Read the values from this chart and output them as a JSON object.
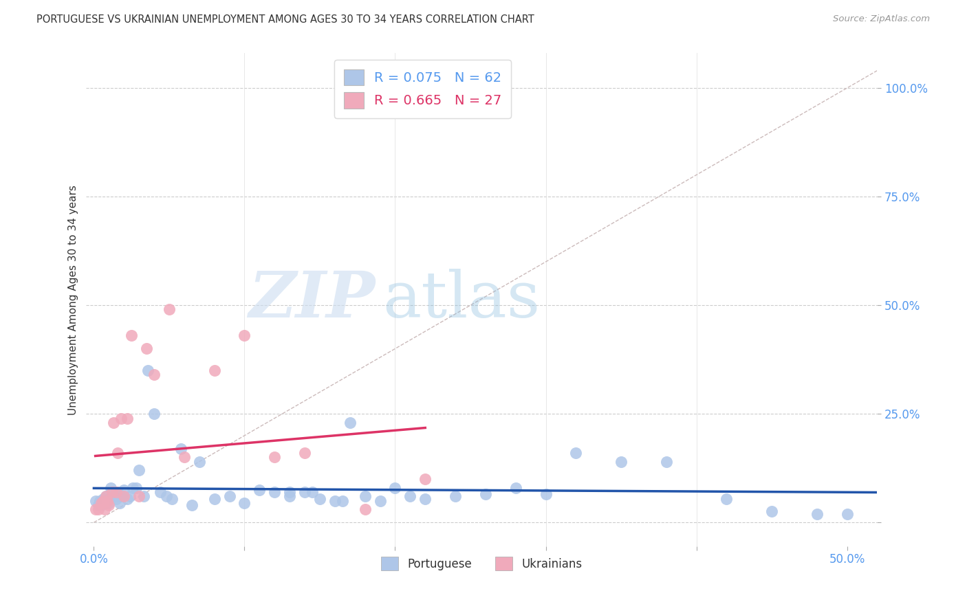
{
  "title": "PORTUGUESE VS UKRAINIAN UNEMPLOYMENT AMONG AGES 30 TO 34 YEARS CORRELATION CHART",
  "source": "Source: ZipAtlas.com",
  "ylabel": "Unemployment Among Ages 30 to 34 years",
  "xlim": [
    -0.005,
    0.52
  ],
  "ylim": [
    -0.055,
    1.08
  ],
  "xticks": [
    0.0,
    0.1,
    0.2,
    0.3,
    0.4,
    0.5
  ],
  "xtick_labels": [
    "0.0%",
    "",
    "",
    "",
    "",
    "50.0%"
  ],
  "yticks": [
    0.0,
    0.25,
    0.5,
    0.75,
    1.0
  ],
  "ytick_labels": [
    "",
    "25.0%",
    "50.0%",
    "75.0%",
    "100.0%"
  ],
  "legend_r1": "R = 0.075",
  "legend_n1": "N = 62",
  "legend_r2": "R = 0.665",
  "legend_n2": "N = 27",
  "portuguese_face_color": "#aec6e8",
  "ukrainian_face_color": "#f0aabb",
  "trend_portuguese_color": "#2255aa",
  "trend_ukrainian_color": "#dd3366",
  "diagonal_color": "#ccbbbb",
  "grid_color": "#cccccc",
  "title_color": "#333333",
  "axis_tick_color": "#5599ee",
  "source_color": "#999999",
  "legend_text_color_1": "#5599ee",
  "legend_text_color_2": "#dd3366",
  "watermark_zip_color": "#ccddf0",
  "watermark_atlas_color": "#88bbdd",
  "portuguese_x": [
    0.001,
    0.003,
    0.004,
    0.005,
    0.006,
    0.007,
    0.008,
    0.009,
    0.01,
    0.011,
    0.012,
    0.013,
    0.014,
    0.015,
    0.016,
    0.017,
    0.018,
    0.019,
    0.02,
    0.022,
    0.024,
    0.026,
    0.028,
    0.03,
    0.033,
    0.036,
    0.04,
    0.044,
    0.048,
    0.052,
    0.058,
    0.065,
    0.07,
    0.08,
    0.09,
    0.1,
    0.11,
    0.12,
    0.13,
    0.14,
    0.15,
    0.16,
    0.17,
    0.18,
    0.19,
    0.2,
    0.22,
    0.24,
    0.26,
    0.28,
    0.3,
    0.32,
    0.35,
    0.38,
    0.42,
    0.45,
    0.48,
    0.5,
    0.13,
    0.145,
    0.165,
    0.21
  ],
  "portuguese_y": [
    0.05,
    0.04,
    0.05,
    0.04,
    0.055,
    0.045,
    0.06,
    0.05,
    0.045,
    0.08,
    0.07,
    0.06,
    0.06,
    0.055,
    0.07,
    0.045,
    0.06,
    0.06,
    0.075,
    0.055,
    0.06,
    0.08,
    0.08,
    0.12,
    0.06,
    0.35,
    0.25,
    0.07,
    0.06,
    0.055,
    0.17,
    0.04,
    0.14,
    0.055,
    0.06,
    0.045,
    0.075,
    0.07,
    0.06,
    0.07,
    0.055,
    0.05,
    0.23,
    0.06,
    0.05,
    0.08,
    0.055,
    0.06,
    0.065,
    0.08,
    0.065,
    0.16,
    0.14,
    0.14,
    0.055,
    0.025,
    0.02,
    0.02,
    0.07,
    0.07,
    0.05,
    0.06
  ],
  "ukrainian_x": [
    0.001,
    0.003,
    0.005,
    0.006,
    0.007,
    0.008,
    0.009,
    0.01,
    0.012,
    0.013,
    0.015,
    0.016,
    0.018,
    0.02,
    0.022,
    0.025,
    0.03,
    0.035,
    0.04,
    0.05,
    0.06,
    0.08,
    0.1,
    0.12,
    0.14,
    0.18,
    0.22
  ],
  "ukrainian_y": [
    0.03,
    0.03,
    0.045,
    0.05,
    0.03,
    0.06,
    0.05,
    0.04,
    0.07,
    0.23,
    0.07,
    0.16,
    0.24,
    0.06,
    0.24,
    0.43,
    0.06,
    0.4,
    0.34,
    0.49,
    0.15,
    0.35,
    0.43,
    0.15,
    0.16,
    0.03,
    0.1
  ]
}
